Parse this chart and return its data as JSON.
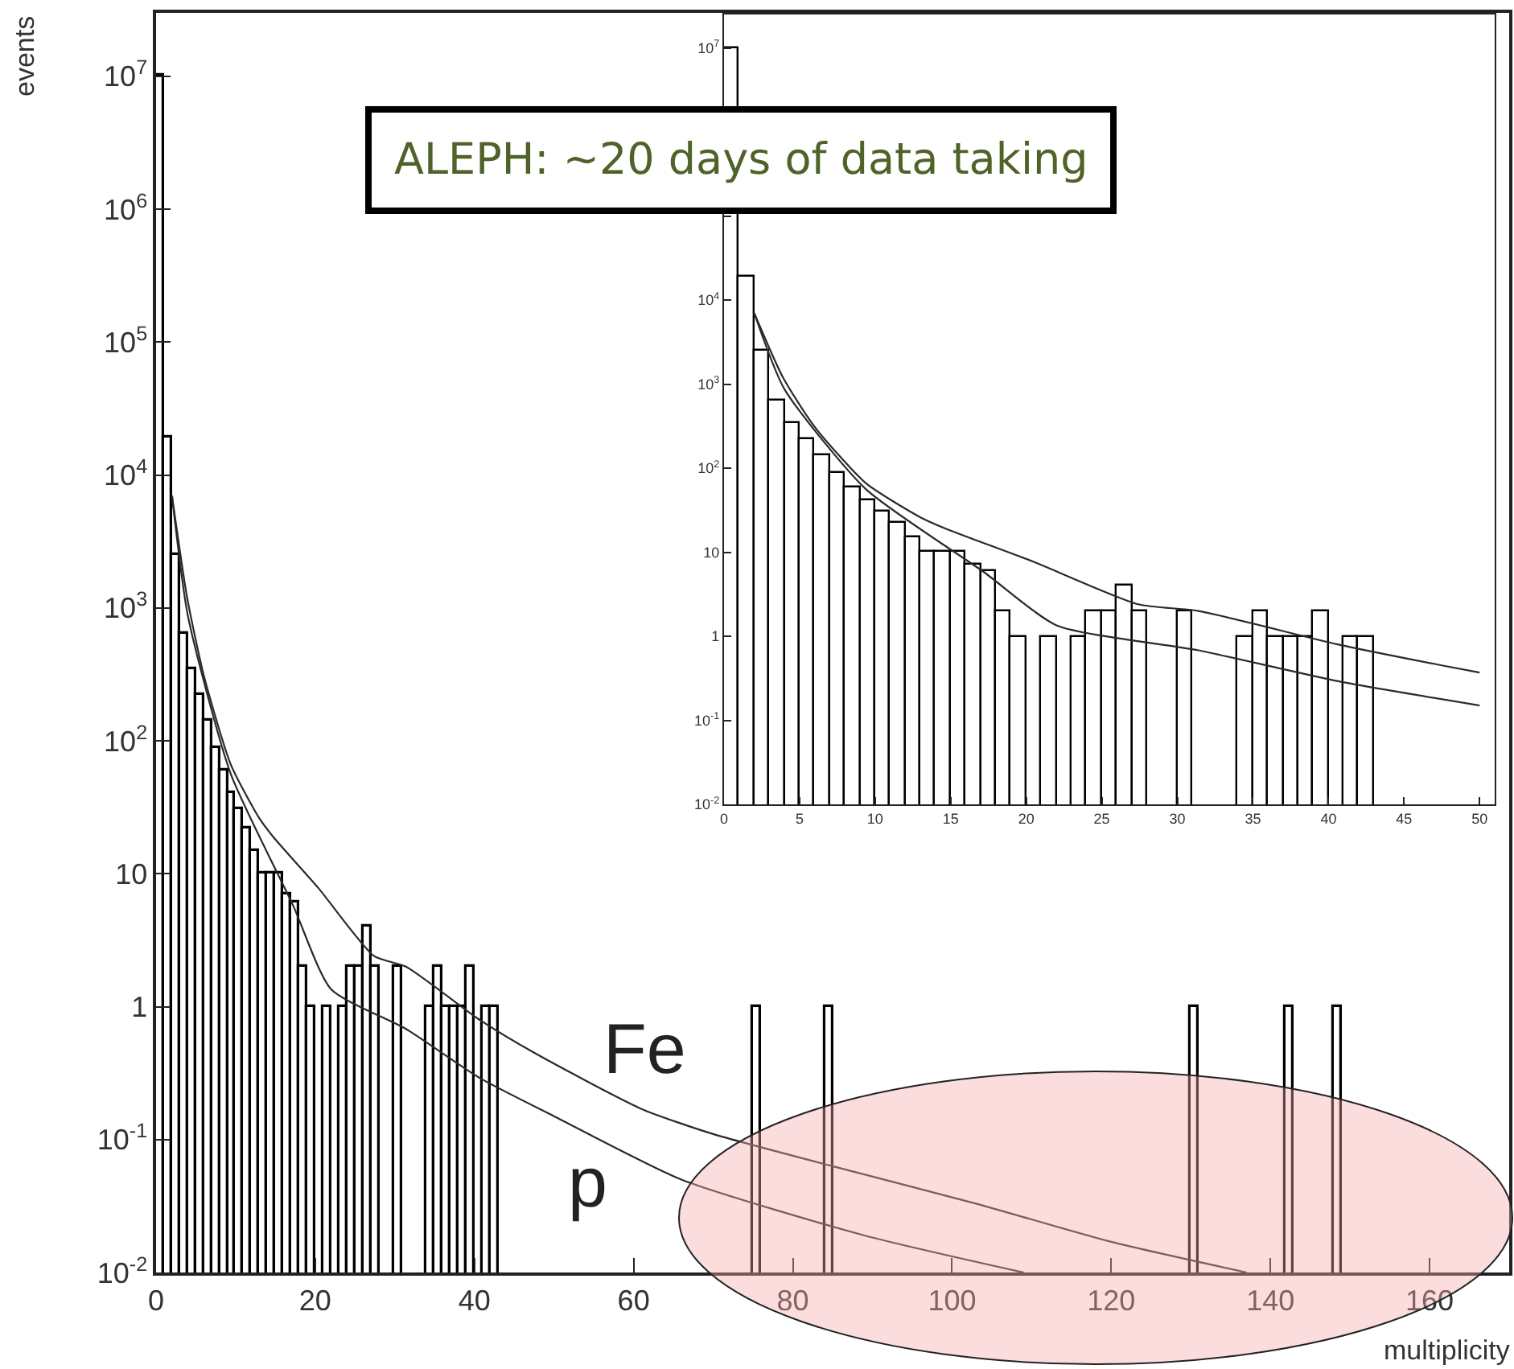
{
  "chart_data": [
    {
      "type": "histogram",
      "xlabel": "multiplicity",
      "ylabel": "events",
      "log": "y",
      "bins": [
        0,
        1,
        2,
        3,
        4,
        5,
        6,
        7,
        8,
        9,
        10,
        11,
        12,
        13,
        14,
        15,
        16,
        17,
        18,
        19,
        20,
        21,
        22,
        23,
        24,
        25,
        26,
        27,
        28,
        30,
        31,
        34,
        35,
        36,
        37,
        38,
        39,
        40,
        41,
        42,
        43,
        75,
        76,
        84,
        85,
        130,
        131,
        142,
        143,
        148,
        149
      ],
      "values": [
        10000000,
        19000,
        2500,
        640,
        350,
        220,
        140,
        89,
        60,
        41,
        31,
        22,
        15,
        10,
        10,
        10,
        7,
        6,
        2,
        1,
        null,
        1,
        null,
        1,
        2,
        2,
        4,
        2,
        null,
        2,
        null,
        1,
        2,
        1,
        1,
        1,
        2,
        null,
        1,
        1,
        null,
        1,
        null,
        1,
        null,
        1,
        null,
        1,
        null,
        1
      ],
      "color": "#000000",
      "series": [
        {
          "type": "line",
          "color": "#2a2a2a",
          "x": [
            2,
            3.9,
            6,
            9.4,
            13,
            14.7,
            20.4,
            27.4,
            31.4,
            40.6,
            47.5,
            61,
            70,
            85,
            103,
            120,
            137
          ],
          "values": [
            7000,
            1200,
            310,
            66,
            26,
            19,
            7.8,
            2.4,
            2,
            0.8,
            0.45,
            0.17,
            0.11,
            0.063,
            0.033,
            0.017,
            0.01
          ]
        },
        {
          "type": "line",
          "color": "#2a2a2a",
          "x": [
            2,
            4,
            9.4,
            17.2,
            22,
            31.4,
            40.7,
            50,
            66,
            89,
            109
          ],
          "values": [
            7000,
            870,
            56,
            5.8,
            1.35,
            0.68,
            0.29,
            0.15,
            0.05,
            0.019,
            0.01
          ]
        }
      ],
      "xlim": [
        0,
        170
      ],
      "xticks": [
        0,
        20,
        40,
        60,
        80,
        100,
        120,
        140,
        160
      ],
      "ylim": [
        0.01,
        30000000
      ],
      "yticks": [
        {
          "value": 0.01,
          "label": "10$^{-2}$"
        },
        {
          "value": 0.1,
          "label": "10$^{-1}$"
        },
        {
          "value": 1,
          "label": "1"
        },
        {
          "value": 10,
          "label": "10"
        },
        {
          "value": 100,
          "label": "10$^{2}$"
        },
        {
          "value": 1000,
          "label": "10$^{3}$"
        },
        {
          "value": 10000,
          "label": "10$^{4}$"
        },
        {
          "value": 100000,
          "label": "10$^{5}$"
        },
        {
          "value": 1000000,
          "label": "10$^{6}$"
        },
        {
          "value": 10000000,
          "label": "10$^{7}$"
        }
      ],
      "annotations": [
        "ALEPH: ~20 days of data taking",
        "Fe",
        "p"
      ]
    },
    {
      "type": "histogram",
      "log": "y",
      "bins": [
        0,
        1,
        2,
        3,
        4,
        5,
        6,
        7,
        8,
        9,
        10,
        11,
        12,
        13,
        14,
        15,
        16,
        17,
        18,
        19,
        20,
        21,
        22,
        23,
        24,
        25,
        26,
        27,
        28,
        30,
        31,
        34,
        35,
        36,
        37,
        38,
        39,
        40,
        41,
        42,
        43
      ],
      "values": [
        10000000,
        19000,
        2500,
        640,
        350,
        220,
        140,
        89,
        60,
        41,
        31,
        22,
        15,
        10,
        10,
        10,
        7,
        6,
        2,
        1,
        null,
        1,
        null,
        1,
        2,
        2,
        4,
        2,
        null,
        2,
        null,
        1,
        2,
        1,
        1,
        1,
        2,
        null,
        1,
        1
      ],
      "color": "#000000",
      "series": [
        {
          "type": "line",
          "color": "#2a2a2a",
          "x": [
            2,
            3.9,
            6,
            9.4,
            13,
            14.7,
            20.4,
            27.4,
            31.4,
            40.6,
            47.5,
            50
          ],
          "values": [
            7000,
            1200,
            310,
            66,
            26,
            19,
            7.8,
            2.4,
            2,
            0.8,
            0.45,
            0.37
          ]
        },
        {
          "type": "line",
          "color": "#2a2a2a",
          "x": [
            2,
            4,
            9.4,
            17.2,
            22,
            31.4,
            40.7,
            50
          ],
          "values": [
            7000,
            870,
            56,
            5.8,
            1.35,
            0.68,
            0.29,
            0.15
          ]
        }
      ],
      "xlim": [
        0,
        51
      ],
      "xticks": [
        0,
        5,
        10,
        15,
        20,
        25,
        30,
        35,
        40,
        45,
        50
      ],
      "ylim": [
        0.01,
        25000000
      ],
      "yticks": [
        {
          "value": 0.01,
          "label": "10$^{-2}$"
        },
        {
          "value": 0.1,
          "label": "10$^{-1}$"
        },
        {
          "value": 1,
          "label": "1"
        },
        {
          "value": 10,
          "label": "10"
        },
        {
          "value": 100,
          "label": "10$^{2}$"
        },
        {
          "value": 1000,
          "label": "10$^{3}$"
        },
        {
          "value": 10000,
          "label": "10$^{4}$"
        },
        {
          "value": 100000,
          "label": null
        },
        {
          "value": 1000000,
          "label": null
        },
        {
          "value": 10000000,
          "label": "10$^{7}$"
        }
      ]
    }
  ]
}
